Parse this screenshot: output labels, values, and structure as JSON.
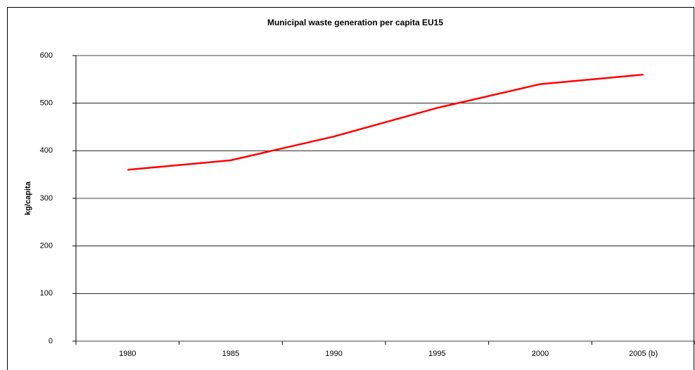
{
  "chart_data": {
    "type": "line",
    "title": "Municipal waste generation per capita EU15",
    "y_label": "kg/capita",
    "categories": [
      "1980",
      "1985",
      "1990",
      "1995",
      "2000",
      "2005 (b)"
    ],
    "series": [
      {
        "name": "EU15",
        "color": "#ff0000",
        "values": [
          360,
          380,
          430,
          490,
          540,
          560
        ]
      }
    ],
    "ylim": [
      0,
      600
    ],
    "yticks": [
      0,
      100,
      200,
      300,
      400,
      500,
      600
    ],
    "grid": true
  }
}
